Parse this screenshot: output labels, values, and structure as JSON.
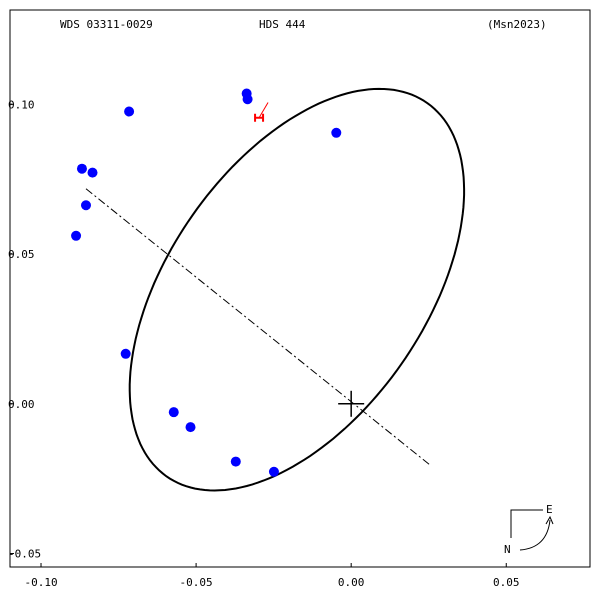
{
  "header": {
    "left": "WDS 03311-0029",
    "center": "HDS 444",
    "right": "(Msn2023)"
  },
  "colors": {
    "orbit": "#000000",
    "observations": "#0000ff",
    "predicted": "#ff0000",
    "frame": "#000000"
  },
  "compass": {
    "east": "E",
    "north": "N"
  },
  "chart_data": {
    "type": "scatter",
    "title": "",
    "xlabel": "",
    "ylabel": "",
    "xlim": [
      -0.11,
      0.077
    ],
    "ylim": [
      -0.0545,
      0.1315
    ],
    "x_ticks": [
      {
        "value": -0.1,
        "label": "-0.10"
      },
      {
        "value": -0.05,
        "label": "-0.05"
      },
      {
        "value": 0.0,
        "label": "0.00"
      },
      {
        "value": 0.05,
        "label": "0.05"
      }
    ],
    "y_ticks": [
      {
        "value": 0.1,
        "label": "0.10"
      },
      {
        "value": 0.05,
        "label": "0.05"
      },
      {
        "value": 0.0,
        "label": "0.00"
      },
      {
        "value": -0.05,
        "label": "-0.05"
      }
    ],
    "orbit_ellipse": {
      "center": [
        -0.0175,
        0.0381
      ],
      "semi_major": 0.0752,
      "semi_minor": 0.0418,
      "rotation_deg": 57
    },
    "line_of_nodes": {
      "from": [
        -0.0855,
        0.0718
      ],
      "to": [
        0.0255,
        -0.0205
      ]
    },
    "primary_star": [
      0.0,
      0.0
    ],
    "observations": [
      {
        "x": -0.0337,
        "y": 0.1036
      },
      {
        "x": -0.0334,
        "y": 0.1017
      },
      {
        "x": -0.0716,
        "y": 0.0976
      },
      {
        "x": -0.0048,
        "y": 0.0905
      },
      {
        "x": -0.0868,
        "y": 0.0785
      },
      {
        "x": -0.0834,
        "y": 0.0772
      },
      {
        "x": -0.0855,
        "y": 0.0663
      },
      {
        "x": -0.0887,
        "y": 0.0561
      },
      {
        "x": -0.0727,
        "y": 0.0167
      },
      {
        "x": -0.0572,
        "y": -0.0028
      },
      {
        "x": -0.0518,
        "y": -0.0078
      },
      {
        "x": -0.0372,
        "y": -0.0193
      },
      {
        "x": -0.0249,
        "y": -0.0227
      }
    ],
    "predicted_position": {
      "x": -0.0297,
      "y": 0.0955
    },
    "residual_line": {
      "from": [
        -0.0297,
        0.0955
      ],
      "to": [
        -0.0268,
        0.1006
      ]
    },
    "grid": false
  }
}
